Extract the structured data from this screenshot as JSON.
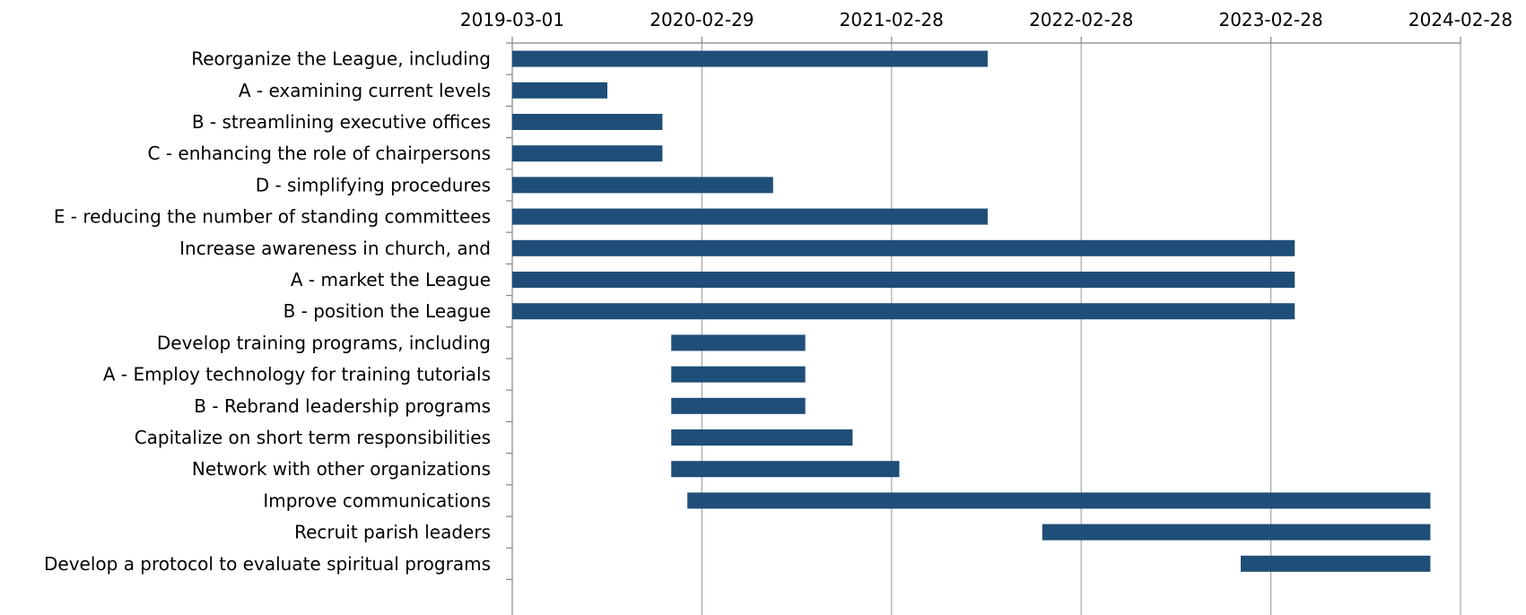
{
  "chart_data": {
    "type": "bar",
    "orientation": "horizontal",
    "subtype": "gantt",
    "color": "#1f4e79",
    "grid": true,
    "x_axis_position": "top",
    "xlim": [
      "2019-03-01",
      "2024-02-28"
    ],
    "x_ticks": [
      "2019-03-01",
      "2020-02-29",
      "2021-02-28",
      "2022-02-28",
      "2023-02-28",
      "2024-02-28"
    ],
    "tasks": [
      {
        "label": "Reorganize the League, including",
        "start": "2019-03-01",
        "end": "2021-09-01"
      },
      {
        "label": "A  - examining current levels",
        "start": "2019-03-01",
        "end": "2019-08-31"
      },
      {
        "label": "B  - streamlining executive offices",
        "start": "2019-03-01",
        "end": "2019-12-15"
      },
      {
        "label": "C  - enhancing the role of chairpersons",
        "start": "2019-03-01",
        "end": "2019-12-15"
      },
      {
        "label": "D - simplifying procedures",
        "start": "2019-03-01",
        "end": "2020-07-15"
      },
      {
        "label": "E  - reducing the number of standing committees",
        "start": "2019-03-01",
        "end": "2021-09-01"
      },
      {
        "label": "Increase awareness in church, and",
        "start": "2019-03-01",
        "end": "2023-04-15"
      },
      {
        "label": "A - market the League",
        "start": "2019-03-01",
        "end": "2023-04-15"
      },
      {
        "label": "B - position the League",
        "start": "2019-03-01",
        "end": "2023-04-15"
      },
      {
        "label": "Develop training programs, including ",
        "start": "2020-01-01",
        "end": "2020-09-15"
      },
      {
        "label": "A - Employ technology for training tutorials",
        "start": "2020-01-01",
        "end": "2020-09-15"
      },
      {
        "label": "B - Rebrand leadership programs",
        "start": "2020-01-01",
        "end": "2020-09-15"
      },
      {
        "label": "Capitalize on short term responsibilities",
        "start": "2020-01-01",
        "end": "2020-12-15"
      },
      {
        "label": "Network with other organizations",
        "start": "2020-01-01",
        "end": "2021-03-15"
      },
      {
        "label": "Improve communications",
        "start": "2020-02-01",
        "end": "2024-01-01"
      },
      {
        "label": "Recruit parish leaders",
        "start": "2021-12-15",
        "end": "2024-01-01"
      },
      {
        "label": "Develop a protocol to evaluate spiritual programs",
        "start": "2023-01-01",
        "end": "2024-01-01"
      }
    ]
  }
}
